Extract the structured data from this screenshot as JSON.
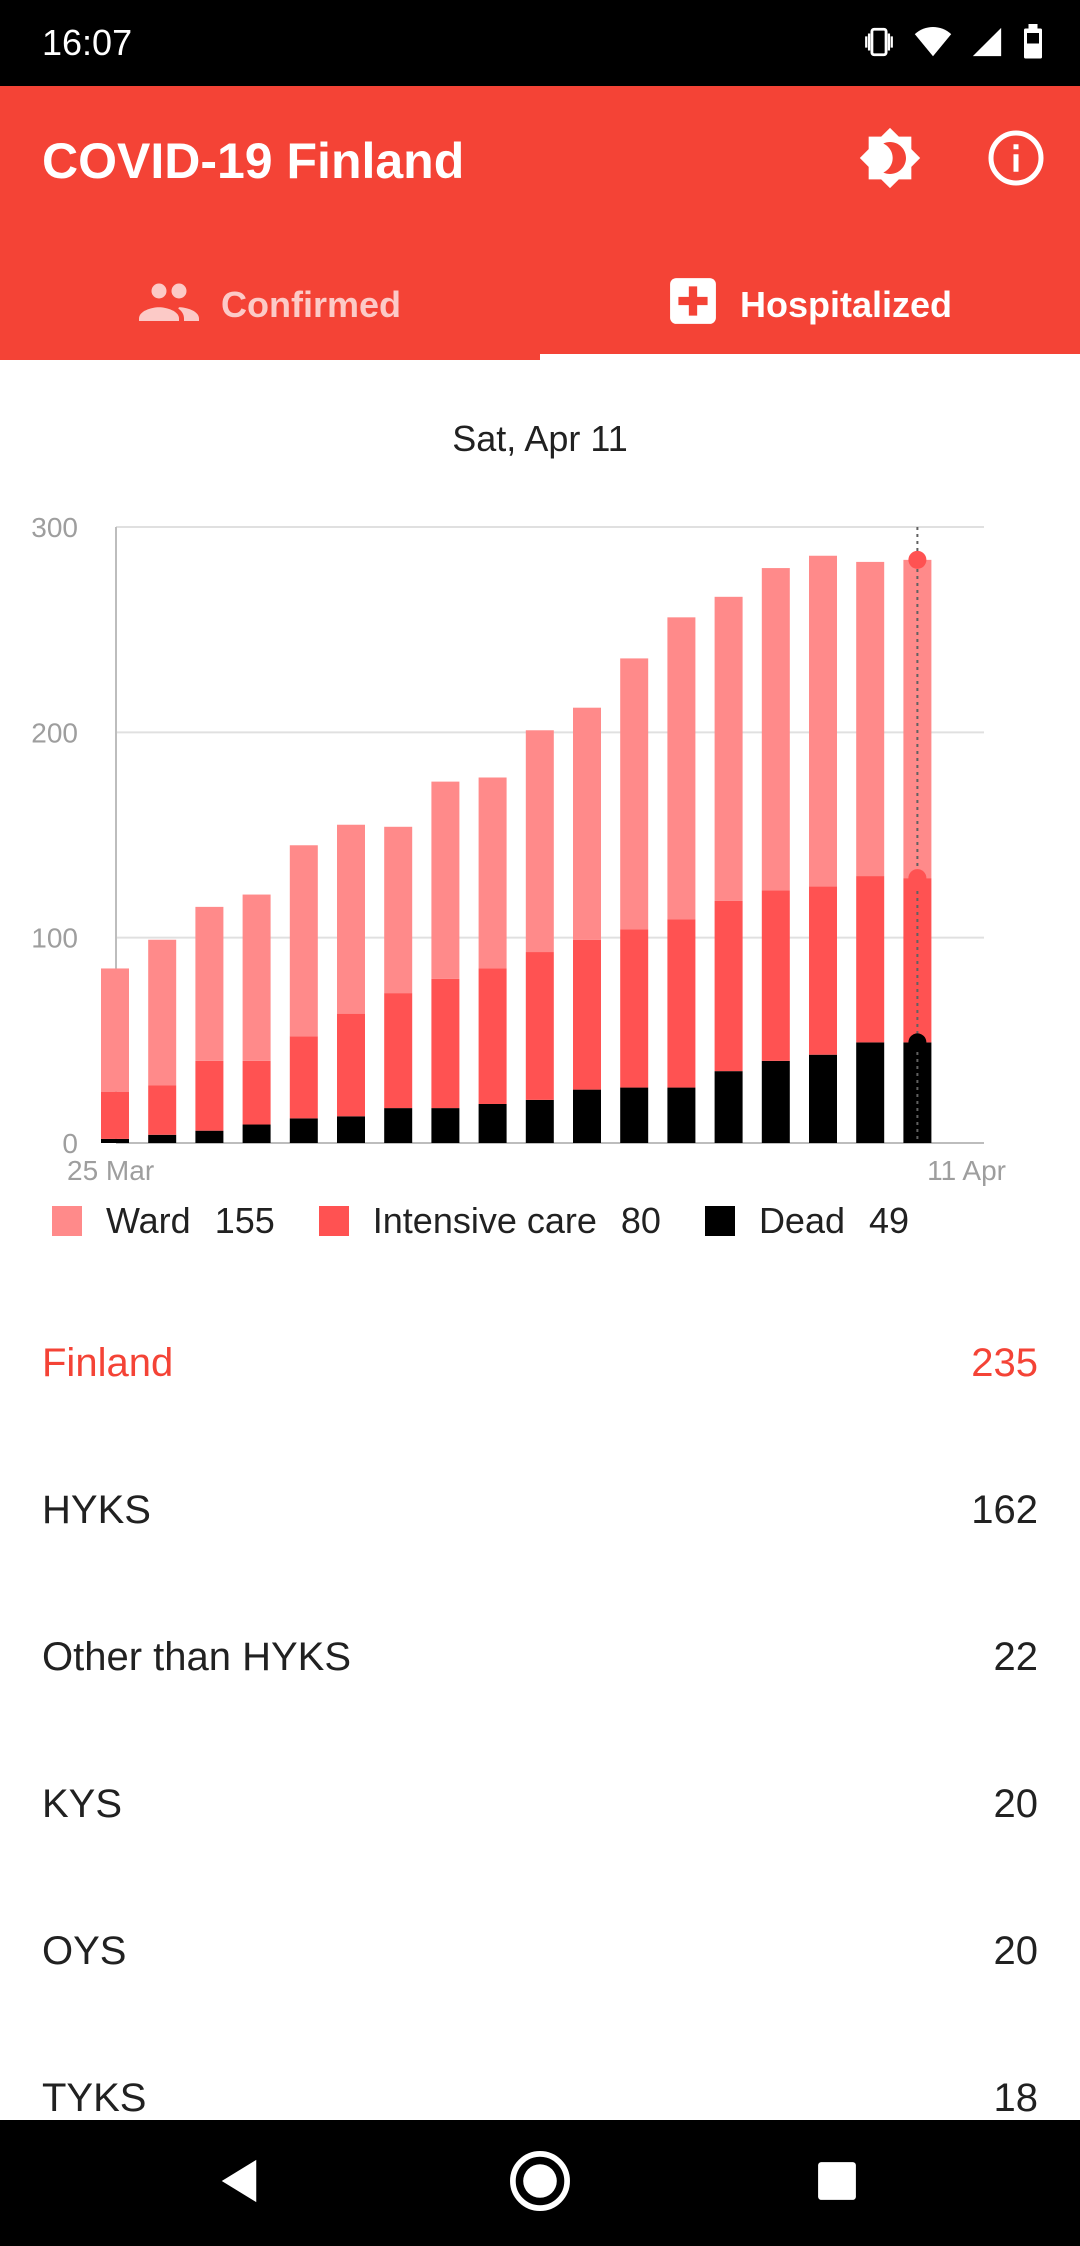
{
  "status_bar": {
    "time": "16:07",
    "icons": [
      "vibrate-icon",
      "wifi-icon",
      "signal-icon",
      "battery-icon"
    ]
  },
  "app_bar": {
    "title": "COVID-19 Finland",
    "actions": [
      "brightness-icon",
      "info-icon"
    ],
    "background": "#f44336"
  },
  "tabs": [
    {
      "label": "Confirmed",
      "icon": "people-icon",
      "selected": false
    },
    {
      "label": "Hospitalized",
      "icon": "hospital-icon",
      "selected": true
    }
  ],
  "selected_date": "Sat, Apr 11",
  "chart_data": {
    "type": "bar",
    "stacked": true,
    "categories": [
      "25 Mar",
      "26 Mar",
      "27 Mar",
      "28 Mar",
      "29 Mar",
      "30 Mar",
      "31 Mar",
      "1 Apr",
      "2 Apr",
      "3 Apr",
      "4 Apr",
      "5 Apr",
      "6 Apr",
      "7 Apr",
      "8 Apr",
      "9 Apr",
      "10 Apr",
      "11 Apr"
    ],
    "x_tick_labels": [
      "25 Mar",
      "11 Apr"
    ],
    "y_ticks": [
      0,
      100,
      200,
      300
    ],
    "ylim": [
      0,
      300
    ],
    "series": [
      {
        "name": "Dead",
        "color": "#000000",
        "values": [
          2,
          4,
          6,
          9,
          12,
          13,
          17,
          17,
          19,
          21,
          26,
          27,
          27,
          35,
          40,
          43,
          49,
          49
        ]
      },
      {
        "name": "Intensive care",
        "color": "#ff5252",
        "values": [
          23,
          24,
          34,
          31,
          40,
          50,
          56,
          63,
          66,
          72,
          73,
          77,
          82,
          83,
          83,
          82,
          81,
          80
        ]
      },
      {
        "name": "Ward",
        "color": "#ff8a8a",
        "values": [
          60,
          71,
          75,
          81,
          93,
          92,
          81,
          96,
          93,
          108,
          113,
          132,
          147,
          148,
          157,
          161,
          153,
          155
        ]
      }
    ],
    "selected_index": 17,
    "grid": true
  },
  "legend": [
    {
      "label": "Ward",
      "value": "155",
      "color": "#ff8a8a"
    },
    {
      "label": "Intensive care",
      "value": "80",
      "color": "#ff5252"
    },
    {
      "label": "Dead",
      "value": "49",
      "color": "#000000"
    }
  ],
  "regions": [
    {
      "name": "Finland",
      "value": "235",
      "highlight": true
    },
    {
      "name": "HYKS",
      "value": "162",
      "highlight": false
    },
    {
      "name": "Other than HYKS",
      "value": "22",
      "highlight": false
    },
    {
      "name": "KYS",
      "value": "20",
      "highlight": false
    },
    {
      "name": "OYS",
      "value": "20",
      "highlight": false
    },
    {
      "name": "TYKS",
      "value": "18",
      "highlight": false
    }
  ],
  "nav_bar": [
    "back-icon",
    "home-icon",
    "recents-icon"
  ]
}
